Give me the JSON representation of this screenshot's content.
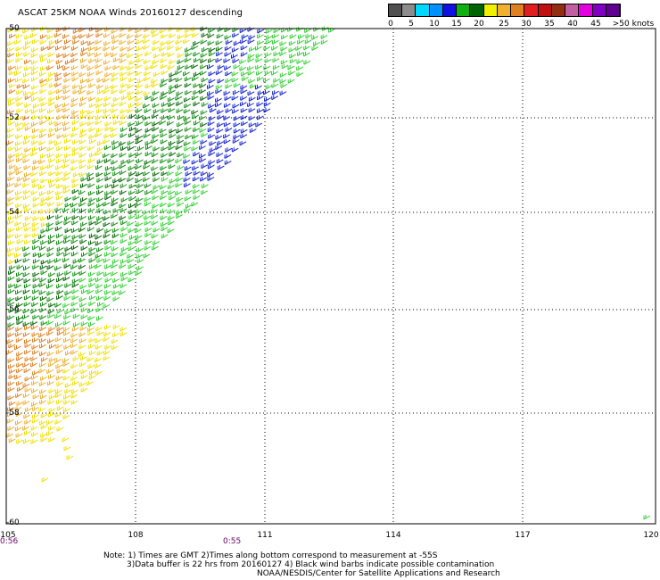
{
  "title": "ASCAT 25KM NOAA Winds 20160127 descending",
  "legend": {
    "colors": [
      "#505050",
      "#8c8c8c",
      "#00d8ff",
      "#0090ff",
      "#1010e0",
      "#10b010",
      "#006400",
      "#f0f000",
      "#f0b030",
      "#e08020",
      "#e02020",
      "#c01010",
      "#903010",
      "#c060a0",
      "#e000e0",
      "#8000c0",
      "#600090"
    ],
    "ticks": [
      "0",
      "5",
      "10",
      "15",
      "20",
      "25",
      "30",
      "35",
      "40",
      "45",
      ">50 knots"
    ]
  },
  "axes": {
    "lon_labels": [
      "105",
      "108",
      "111",
      "114",
      "117",
      "120"
    ],
    "lat_labels": [
      "-50",
      "-52",
      "-54",
      "-56",
      "-58",
      "-60"
    ]
  },
  "times": [
    "0:56",
    "0:55"
  ],
  "notes": {
    "line1": "Note: 1) Times are GMT 2)Times along bottom correspond to measurement at -55S",
    "line2": "3)Data buffer is 22 hrs from 20160127 4) Black wind barbs indicate possible contamination",
    "line3": "NOAA/NESDIS/Center for Satellite Applications and Research"
  },
  "swath_colors": {
    "orange": "#e08020",
    "gold": "#f0b030",
    "yellow": "#f0e000",
    "lightgreen": "#30d030",
    "green": "#109010",
    "darkgreen": "#006400",
    "blue": "#1020d0"
  }
}
